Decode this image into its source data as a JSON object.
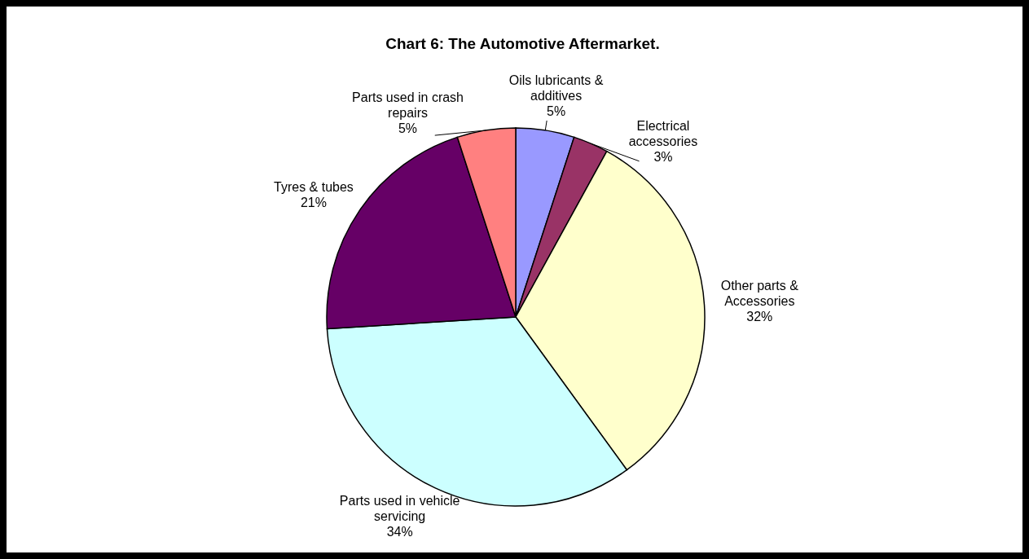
{
  "chart_data": {
    "type": "pie",
    "title": "Chart 6:  The Automotive Aftermarket.",
    "categories": [
      "Oils lubricants & additives",
      "Electrical accessories",
      "Other parts & Accessories",
      "Parts used in vehicle servicing",
      "Tyres & tubes",
      "Parts used in crash repairs"
    ],
    "values": [
      5,
      3,
      32,
      34,
      21,
      5
    ],
    "value_labels": [
      "5%",
      "3%",
      "32%",
      "34%",
      "21%",
      "5%"
    ],
    "colors": [
      "#9999ff",
      "#993366",
      "#ffffcc",
      "#ccffff",
      "#660066",
      "#ff8080"
    ]
  }
}
